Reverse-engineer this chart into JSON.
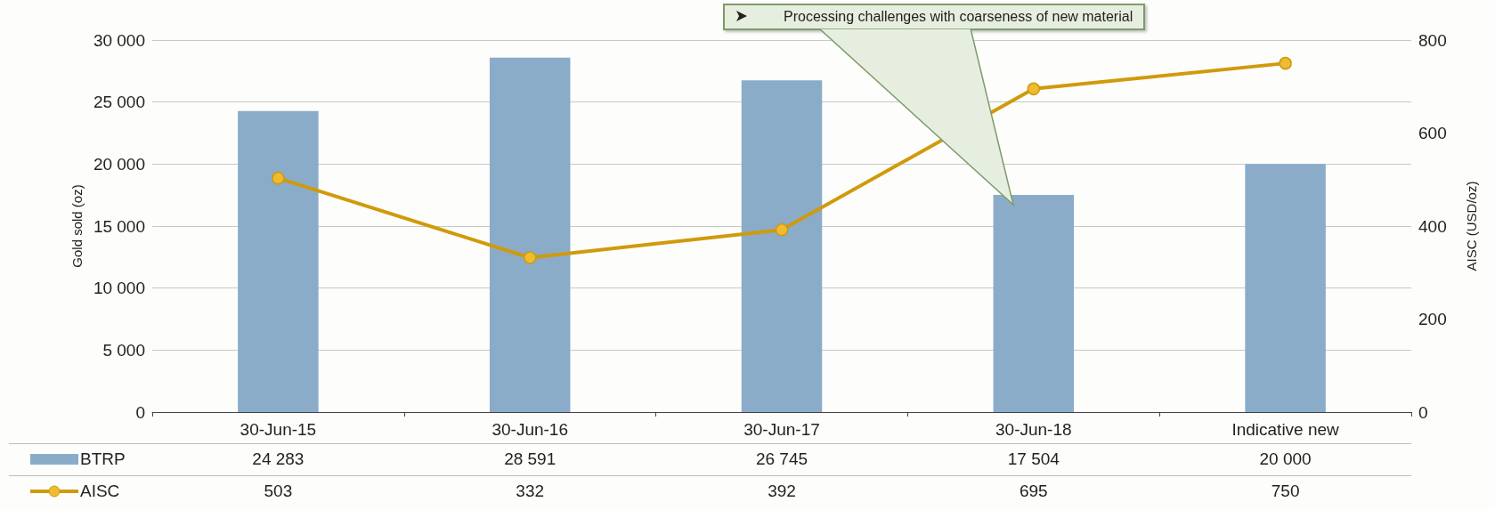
{
  "chart_data": {
    "type": "bar",
    "ylabel": "Gold sold (oz)",
    "y2label": "AISC (USD/oz)",
    "categories": [
      "30-Jun-15",
      "30-Jun-16",
      "30-Jun-17",
      "30-Jun-18",
      "Indicative new"
    ],
    "series": [
      {
        "name": "BTRP",
        "color": "#8aacc8",
        "values": [
          24283,
          28591,
          26745,
          17504,
          20000
        ]
      },
      {
        "name": "AISC",
        "type": "line",
        "axis": "y2",
        "color": "#d09a0c",
        "values": [
          503,
          332,
          392,
          695,
          750
        ]
      }
    ],
    "ylim": [
      0,
      30000
    ],
    "yticks": [
      0,
      5000,
      10000,
      15000,
      20000,
      25000,
      30000
    ],
    "y2lim": [
      0,
      800
    ],
    "y2ticks": [
      0,
      200,
      400,
      600,
      800
    ],
    "grid": "y",
    "legend": "bottom left",
    "marker": "circle",
    "data_labels": true,
    "annotations": [
      "Processing challenges with coarseness of new material"
    ]
  }
}
